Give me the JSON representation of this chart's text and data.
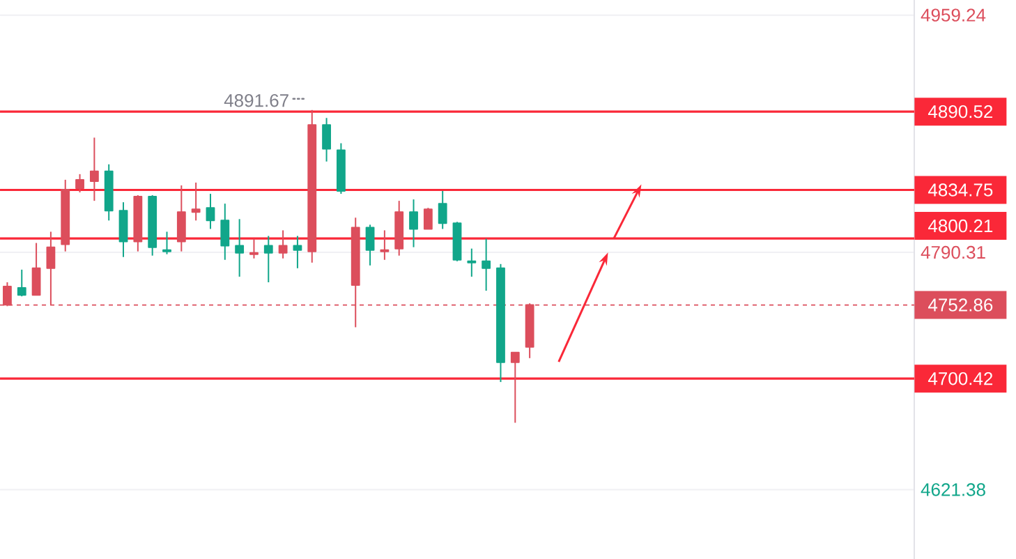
{
  "chart_data": {
    "type": "candlestick",
    "categories": [
      null,
      null,
      null,
      null,
      null,
      null,
      null,
      null,
      null,
      null,
      null,
      null,
      null,
      null,
      null,
      null,
      null,
      null,
      null,
      null,
      null,
      null,
      null,
      null,
      null,
      null,
      null,
      null,
      null,
      null,
      null,
      null,
      null,
      null,
      null,
      null,
      null,
      null,
      null,
      null,
      null,
      null,
      null,
      null,
      null,
      null,
      null,
      null,
      null,
      null,
      null,
      null,
      null,
      null,
      null,
      null,
      null,
      null,
      null,
      null,
      null,
      null,
      null
    ],
    "ohlc": [
      [
        4753,
        4769,
        4752,
        4766
      ],
      [
        4765,
        4778,
        4759,
        4760
      ],
      [
        4760,
        4797,
        4760,
        4779
      ],
      [
        4779,
        4805,
        4753,
        4794
      ],
      [
        4796,
        4842,
        4791,
        4835
      ],
      [
        4836,
        4846,
        4833,
        4842
      ],
      [
        4841,
        4872,
        4827,
        4848
      ],
      [
        4848,
        4853,
        4813,
        4820
      ],
      [
        4820,
        4826,
        4787,
        4798
      ],
      [
        4798,
        4831,
        4791,
        4830
      ],
      [
        4830,
        4831,
        4788,
        4794
      ],
      [
        4792,
        4805,
        4789,
        4791
      ],
      [
        4798,
        4838,
        4791,
        4819
      ],
      [
        4819,
        4840,
        4813,
        4821
      ],
      [
        4822,
        4832,
        4807,
        4813
      ],
      [
        4813,
        4825,
        4785,
        4795
      ],
      [
        4795,
        4814,
        4773,
        4790
      ],
      [
        4789,
        4800,
        4786,
        4790
      ],
      [
        4795,
        4802,
        4769,
        4790
      ],
      [
        4790,
        4806,
        4786,
        4795
      ],
      [
        4795,
        4802,
        4779,
        4792
      ],
      [
        4791,
        4891.67,
        4783,
        4881
      ],
      [
        4881,
        4886,
        4855,
        4864
      ],
      [
        4863,
        4868,
        4832,
        4834
      ],
      [
        4767,
        4815,
        4737,
        4808
      ],
      [
        4808,
        4810,
        4781,
        4792
      ],
      [
        4791,
        4806,
        4785,
        4792
      ],
      [
        4793,
        4827,
        4788,
        4819
      ],
      [
        4819,
        4828,
        4794,
        4807
      ],
      [
        4807,
        4822,
        4807,
        4821
      ],
      [
        4825,
        4834,
        4807,
        4811
      ],
      [
        4811,
        4812,
        4784,
        4785
      ],
      [
        4784,
        4793,
        4773,
        4783
      ],
      [
        4784,
        4800,
        4763,
        4779
      ],
      [
        4779,
        4782,
        4698,
        4712
      ],
      [
        4712,
        4719,
        4669,
        4719
      ],
      [
        4723,
        4754,
        4715,
        4752.86
      ],
      null,
      null,
      null,
      null,
      null,
      null,
      null,
      null,
      null,
      null,
      null,
      null,
      null,
      null,
      null,
      null,
      null,
      null,
      null,
      null,
      null,
      null,
      null,
      null,
      null,
      null
    ],
    "colors": [
      "#dc4e5c",
      "#11a68a",
      "#dc4e5c",
      "#dc4e5c",
      "#dc4e5c",
      "#dc4e5c",
      "#dc4e5c",
      "#11a68a",
      "#11a68a",
      "#dc4e5c",
      "#11a68a",
      "#11a68a",
      "#dc4e5c",
      "#dc4e5c",
      "#11a68a",
      "#11a68a",
      "#11a68a",
      "#dc4e5c",
      "#11a68a",
      "#dc4e5c",
      "#11a68a",
      "#dc4e5c",
      "#11a68a",
      "#11a68a",
      "#dc4e5c",
      "#11a68a",
      "#dc4e5c",
      "#dc4e5c",
      "#11a68a",
      "#dc4e5c",
      "#11a68a",
      "#11a68a",
      "#11a68a",
      "#11a68a",
      "#11a68a",
      "#dc4e5c",
      "#dc4e5c",
      null,
      null,
      null,
      null,
      null,
      null,
      null,
      null,
      null,
      null,
      null,
      null,
      null,
      null,
      null,
      null,
      null,
      null,
      null,
      null,
      null,
      null,
      null,
      null,
      null,
      null
    ],
    "ylim": [
      4572,
      4970
    ],
    "yticks": [
      4959.24,
      4790.31,
      4621.38
    ],
    "grid": "y",
    "tick_labels": "y",
    "ref_lines": [
      {
        "axis": "y",
        "value": 4890.52,
        "label": "4890.52",
        "color": "#fa2838"
      },
      {
        "axis": "y",
        "value": 4834.75,
        "label": "4834.75",
        "color": "#fa2838"
      },
      {
        "axis": "y",
        "value": 4800.21,
        "label": "4800.21",
        "color": "#fa2838"
      },
      {
        "axis": "y",
        "value": 4752.86,
        "label": "4752.86",
        "color": "#dc4e5c",
        "line_style": "dashed"
      },
      {
        "axis": "y",
        "value": 4700.42,
        "label": "4700.42",
        "color": "#fa2838"
      }
    ],
    "annotations": [
      {
        "text": "4891.67",
        "y": 4891.67
      }
    ]
  }
}
